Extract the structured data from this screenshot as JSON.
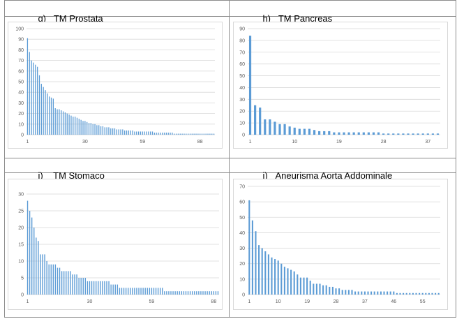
{
  "panels": [
    {
      "label": "g)",
      "title": "TM Prostata",
      "chart_data": {
        "type": "bar",
        "ylim": [
          0,
          100
        ],
        "yticks": [
          0,
          10,
          20,
          30,
          40,
          50,
          60,
          70,
          80,
          90,
          100
        ],
        "xticks": [
          "1",
          "30",
          "59",
          "88"
        ],
        "xtick_positions": [
          1,
          30,
          59,
          88
        ],
        "grid": true,
        "color": "#5b9bd5",
        "values": [
          91,
          78,
          70,
          68,
          66,
          64,
          56,
          48,
          45,
          42,
          39,
          36,
          35,
          34,
          25,
          24,
          24,
          23,
          22,
          21,
          20,
          19,
          18,
          17,
          17,
          16,
          15,
          14,
          13,
          13,
          12,
          11,
          11,
          10,
          10,
          9,
          9,
          8,
          8,
          7,
          7,
          7,
          6,
          6,
          6,
          5,
          5,
          5,
          5,
          4,
          4,
          4,
          4,
          4,
          3,
          3,
          3,
          3,
          3,
          3,
          3,
          3,
          3,
          3,
          2,
          2,
          2,
          2,
          2,
          2,
          2,
          2,
          2,
          2,
          1,
          1,
          1,
          1,
          1,
          1,
          1,
          1,
          1,
          1,
          1,
          1,
          1,
          1,
          1,
          1,
          1,
          1,
          1,
          1,
          1
        ]
      }
    },
    {
      "label": "h)",
      "title": "TM Pancreas",
      "chart_data": {
        "type": "bar",
        "ylim": [
          0,
          90
        ],
        "yticks": [
          0,
          10,
          20,
          30,
          40,
          50,
          60,
          70,
          80,
          90
        ],
        "xticks": [
          "1",
          "10",
          "19",
          "28",
          "37"
        ],
        "xtick_positions": [
          1,
          10,
          19,
          28,
          37
        ],
        "grid": true,
        "color": "#5b9bd5",
        "values": [
          84,
          25,
          23,
          13,
          13,
          11,
          9,
          9,
          7,
          6,
          5,
          5,
          5,
          4,
          3,
          3,
          3,
          2,
          2,
          2,
          2,
          2,
          2,
          2,
          2,
          2,
          2,
          1,
          1,
          1,
          1,
          1,
          1,
          1,
          1,
          1,
          1,
          1,
          1
        ]
      }
    },
    {
      "label": "i)",
      "title": "TM Stomaco",
      "chart_data": {
        "type": "bar",
        "ylim": [
          0,
          30
        ],
        "yticks": [
          0,
          5,
          10,
          15,
          20,
          25,
          30
        ],
        "xticks": [
          "1",
          "30",
          "59",
          "88"
        ],
        "xtick_positions": [
          1,
          30,
          59,
          88
        ],
        "grid": true,
        "color": "#5b9bd5",
        "values": [
          28,
          25,
          23,
          20,
          17,
          16,
          12,
          12,
          12,
          10,
          9,
          9,
          9,
          9,
          8,
          8,
          7,
          7,
          7,
          7,
          7,
          6,
          6,
          6,
          5,
          5,
          5,
          5,
          4,
          4,
          4,
          4,
          4,
          4,
          4,
          4,
          4,
          4,
          4,
          3,
          3,
          3,
          3,
          2,
          2,
          2,
          2,
          2,
          2,
          2,
          2,
          2,
          2,
          2,
          2,
          2,
          2,
          2,
          2,
          2,
          2,
          2,
          2,
          2,
          1,
          1,
          1,
          1,
          1,
          1,
          1,
          1,
          1,
          1,
          1,
          1,
          1,
          1,
          1,
          1,
          1,
          1,
          1,
          1,
          1,
          1,
          1,
          1,
          1,
          1
        ]
      }
    },
    {
      "label": "j)",
      "title": "Aneurisma Aorta Addominale",
      "chart_data": {
        "type": "bar",
        "ylim": [
          0,
          70
        ],
        "yticks": [
          0,
          10,
          20,
          30,
          40,
          50,
          60,
          70
        ],
        "xticks": [
          "1",
          "10",
          "19",
          "28",
          "37",
          "46",
          "55"
        ],
        "xtick_positions": [
          1,
          10,
          19,
          28,
          37,
          46,
          55
        ],
        "grid": true,
        "color": "#5b9bd5",
        "values": [
          61,
          48,
          41,
          32,
          30,
          28,
          26,
          24,
          23,
          22,
          20,
          18,
          17,
          16,
          15,
          13,
          11,
          11,
          11,
          9,
          7,
          7,
          7,
          6,
          6,
          5,
          5,
          4,
          4,
          3,
          3,
          3,
          3,
          2,
          2,
          2,
          2,
          2,
          2,
          2,
          2,
          2,
          2,
          2,
          2,
          2,
          1,
          1,
          1,
          1,
          1,
          1,
          1,
          1,
          1,
          1,
          1,
          1,
          1,
          1
        ]
      }
    }
  ]
}
